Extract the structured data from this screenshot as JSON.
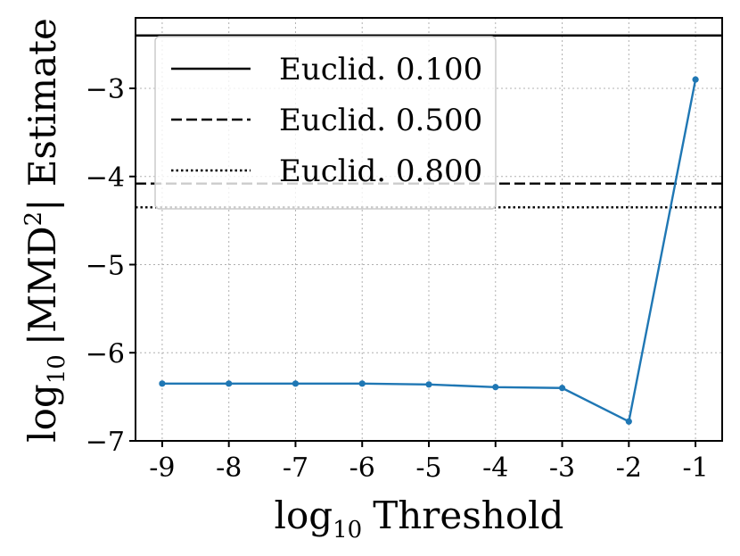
{
  "chart_data": {
    "type": "line",
    "xlabel": "log10 Threshold",
    "xlabel_parts": {
      "log": "log",
      "base": "10",
      "rest": "Threshold"
    },
    "ylabel": "log10 |MMD²| Estimate",
    "ylabel_parts": {
      "log": "log",
      "base": "10",
      "open": "|MMD",
      "sup": "2",
      "close": "| Estimate"
    },
    "x": [
      -9,
      -8,
      -7,
      -6,
      -5,
      -4,
      -3,
      -2,
      -1
    ],
    "x_tick_labels": [
      "-9",
      "-8",
      "-7",
      "-6",
      "-5",
      "-4",
      "-3",
      "-2",
      "-1"
    ],
    "y_ticks": [
      -7,
      -6,
      -5,
      -4,
      -3
    ],
    "y_tick_labels": [
      "−7",
      "−6",
      "−5",
      "−4",
      "−3"
    ],
    "xlim": [
      -9.4,
      -0.6
    ],
    "ylim": [
      -7.0,
      -2.2
    ],
    "grid": true,
    "legend_position": "top-left",
    "series": [
      {
        "values": [
          -6.35,
          -6.35,
          -6.35,
          -6.35,
          -6.36,
          -6.39,
          -6.4,
          -6.78,
          -2.9
        ],
        "color": "#1f77b4",
        "marker": "circle"
      }
    ],
    "reference_lines": [
      {
        "name": "Euclid. 0.100",
        "y": -2.4,
        "style": "solid",
        "color": "#000000"
      },
      {
        "name": "Euclid. 0.500",
        "y": -4.08,
        "style": "dashed",
        "color": "#000000"
      },
      {
        "name": "Euclid. 0.800",
        "y": -4.35,
        "style": "dotted",
        "color": "#000000"
      }
    ]
  }
}
